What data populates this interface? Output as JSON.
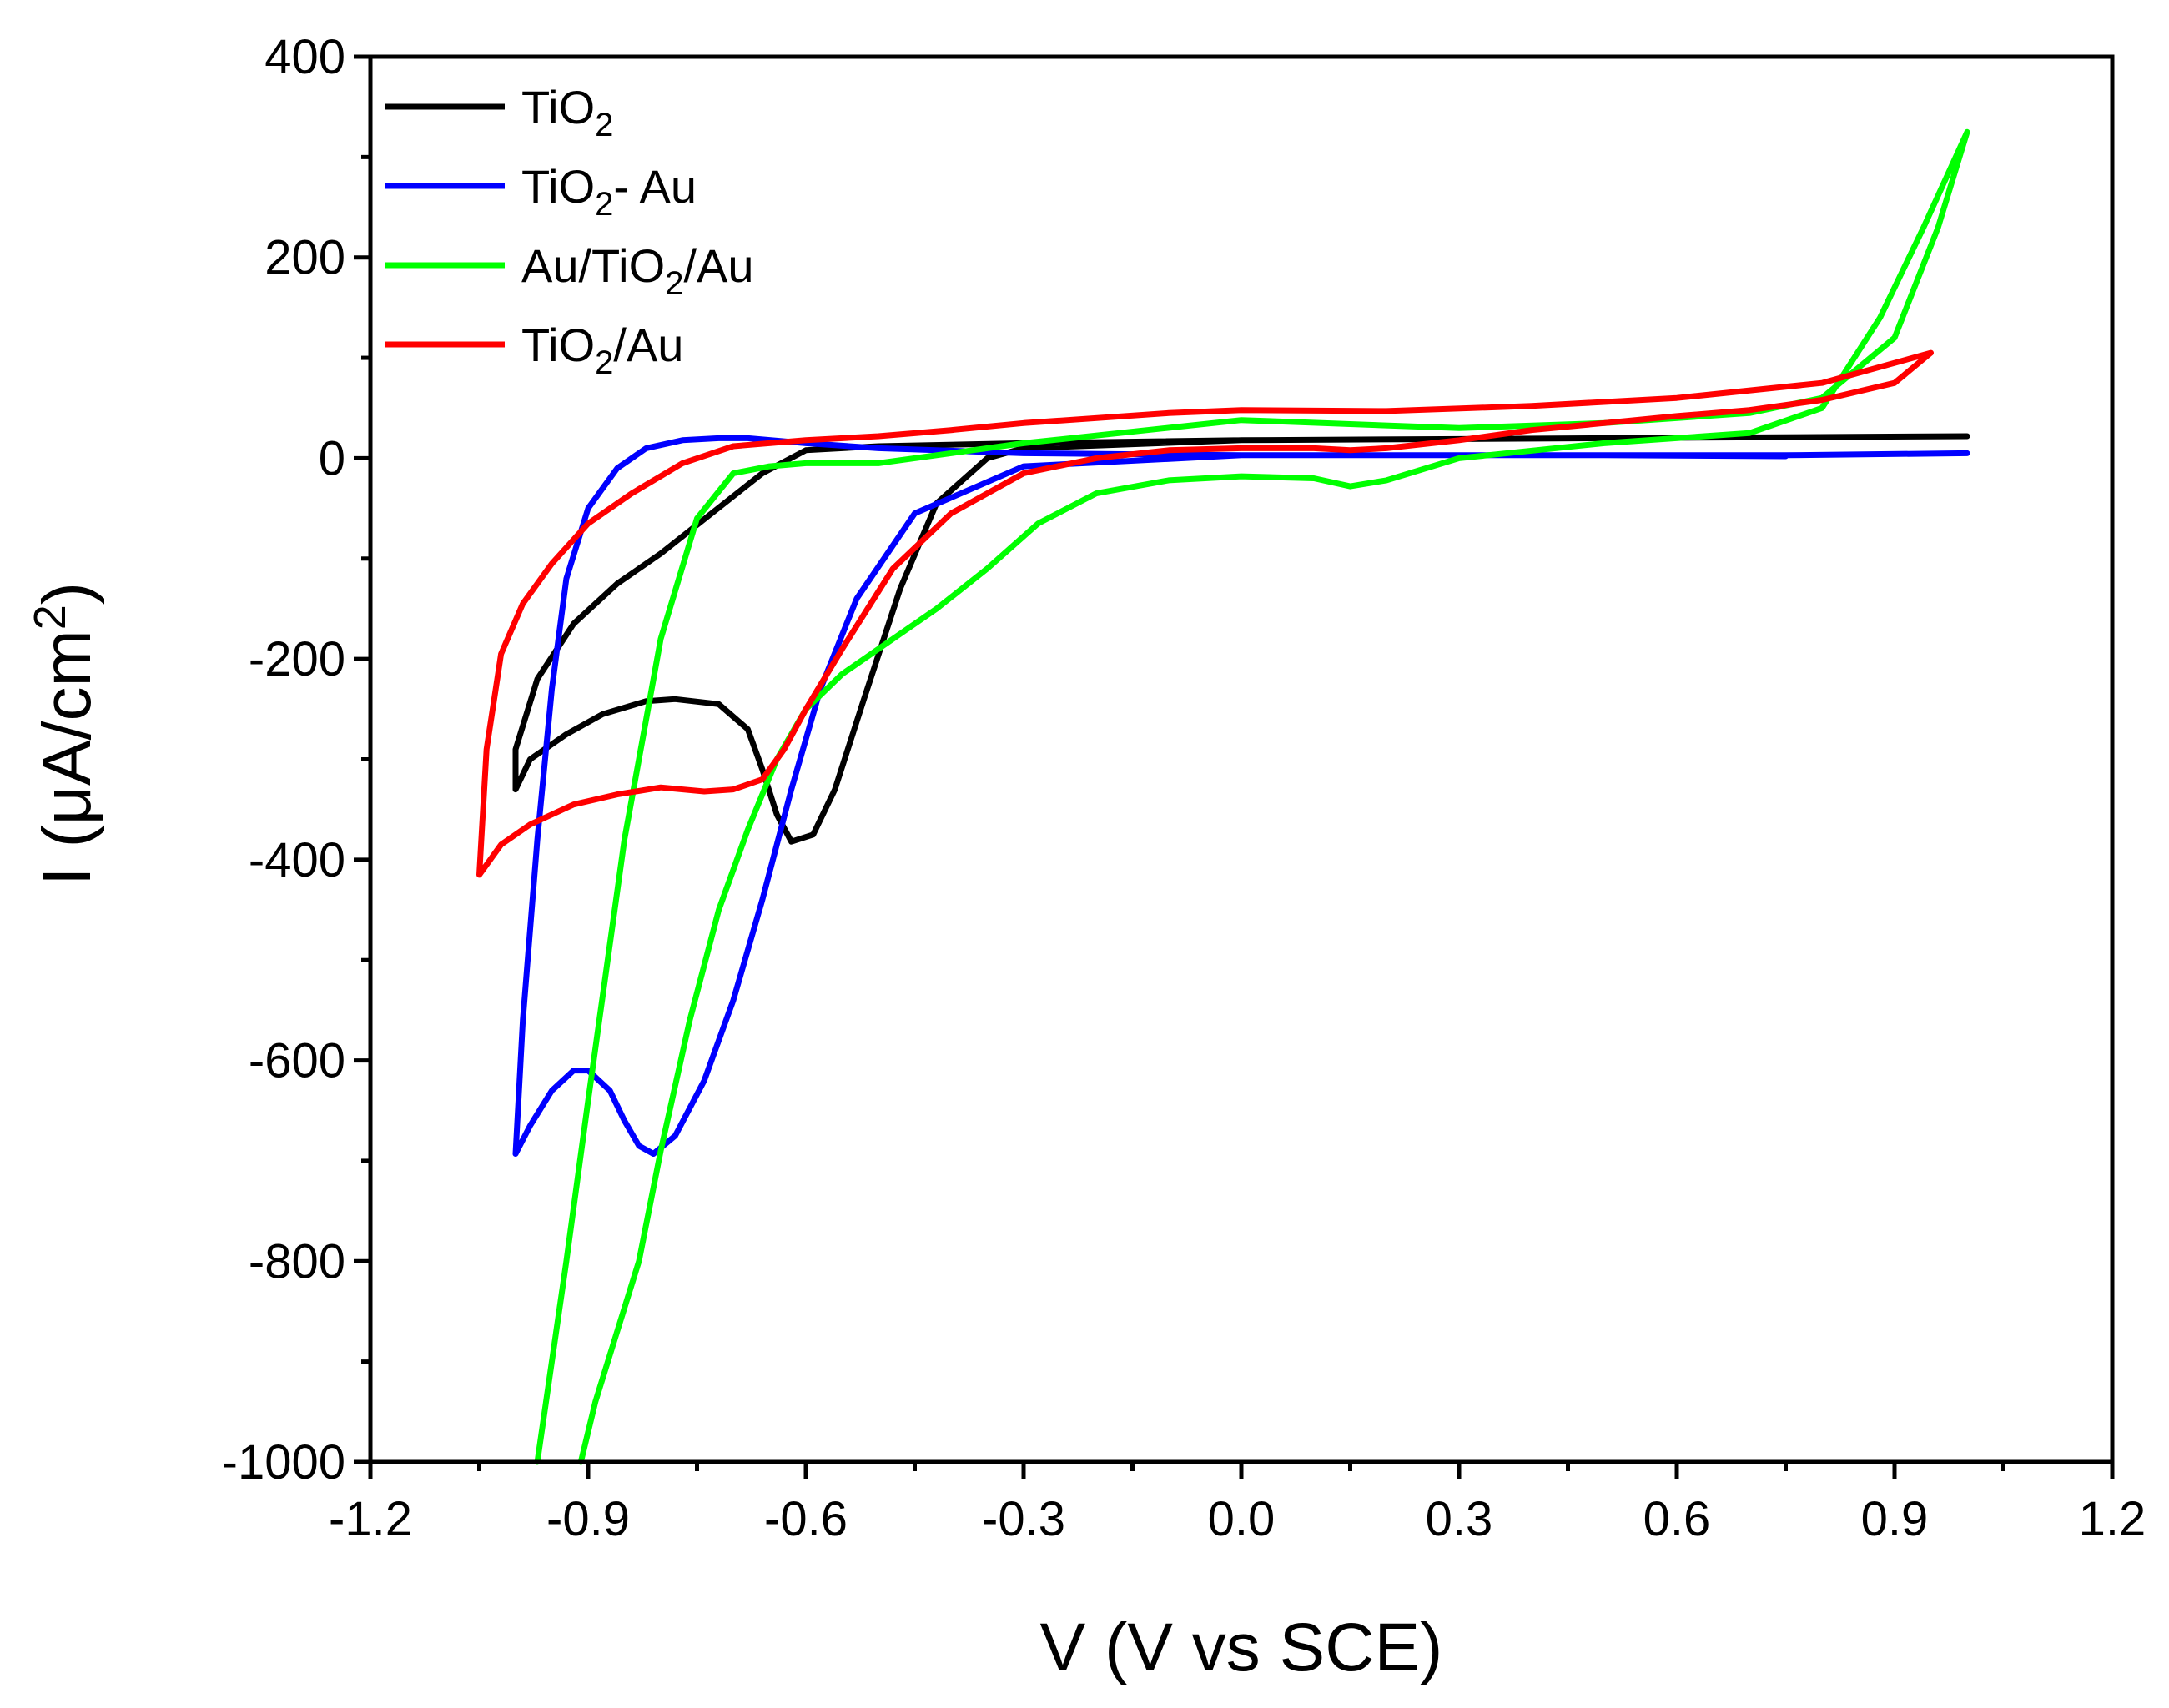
{
  "chart_data": {
    "type": "line",
    "title": "",
    "xlabel": "V (V vs SCE)",
    "ylabel": "I (μA/cm²)",
    "ylabel_parts": {
      "before": "I (μA/cm",
      "sup": "2",
      "after": ")"
    },
    "xlim": [
      -1.2,
      1.2
    ],
    "ylim": [
      -1000,
      400
    ],
    "x_ticks": [
      -1.2,
      -0.9,
      -0.6,
      -0.3,
      0.0,
      0.3,
      0.6,
      0.9,
      1.2
    ],
    "x_tick_labels": [
      "-1.2",
      "-0.9",
      "-0.6",
      "-0.3",
      "0.0",
      "0.3",
      "0.6",
      "0.9",
      "1.2"
    ],
    "y_ticks": [
      400,
      200,
      0,
      -200,
      -400,
      -600,
      -800,
      -1000
    ],
    "y_tick_labels": [
      "400",
      "200",
      "0",
      "-200",
      "-400",
      "-600",
      "-800",
      "-1000"
    ],
    "grid": false,
    "legend_position": "top-left",
    "series": [
      {
        "name": "TiO2",
        "label_parts": {
          "before": "TiO",
          "sub": "2",
          "after": ""
        },
        "color": "#000000",
        "x": [
          1.0,
          0.5,
          0.0,
          -0.3,
          -0.35,
          -0.42,
          -0.47,
          -0.52,
          -0.56,
          -0.59,
          -0.62,
          -0.64,
          -0.66,
          -0.68,
          -0.72,
          -0.78,
          -0.82,
          -0.88,
          -0.93,
          -0.98,
          -1.0,
          -1.0,
          -0.97,
          -0.92,
          -0.86,
          -0.8,
          -0.73,
          -0.66,
          -0.6,
          -0.5,
          -0.3,
          0.0,
          0.5,
          1.0
        ],
        "y": [
          22,
          20,
          18,
          10,
          0,
          -45,
          -130,
          -240,
          -330,
          -375,
          -382,
          -355,
          -310,
          -270,
          -245,
          -240,
          -242,
          -255,
          -275,
          -300,
          -330,
          -290,
          -220,
          -165,
          -125,
          -95,
          -55,
          -15,
          8,
          12,
          15,
          18,
          20,
          22
        ]
      },
      {
        "name": "TiO2- Au",
        "label_parts": {
          "before": "TiO",
          "sub": "2",
          "after": "- Au"
        },
        "color": "#0000ff",
        "x": [
          1.0,
          0.75,
          0.5,
          0.0,
          -0.3,
          -0.45,
          -0.53,
          -0.58,
          -0.62,
          -0.66,
          -0.7,
          -0.74,
          -0.78,
          -0.81,
          -0.83,
          -0.85,
          -0.87,
          -0.9,
          -0.92,
          -0.95,
          -0.98,
          -1.0,
          -0.99,
          -0.97,
          -0.95,
          -0.93,
          -0.9,
          -0.86,
          -0.82,
          -0.77,
          -0.72,
          -0.68,
          -0.6,
          -0.5,
          -0.3,
          0.0,
          0.5,
          0.75
        ],
        "y": [
          5,
          3,
          3,
          3,
          -8,
          -55,
          -140,
          -230,
          -330,
          -440,
          -540,
          -620,
          -675,
          -693,
          -685,
          -660,
          -630,
          -610,
          -610,
          -630,
          -665,
          -693,
          -560,
          -380,
          -230,
          -120,
          -50,
          -10,
          10,
          18,
          20,
          20,
          15,
          10,
          5,
          3,
          3,
          2
        ]
      },
      {
        "name": "Au/TiO2/Au",
        "label_parts": {
          "before": "Au/TiO",
          "sub": "2",
          "after": "/Au"
        },
        "color": "#00ff00",
        "x": [
          -0.91,
          -0.89,
          -0.86,
          -0.83,
          -0.8,
          -0.76,
          -0.72,
          -0.68,
          -0.64,
          -0.6,
          -0.55,
          -0.5,
          -0.42,
          -0.35,
          -0.28,
          -0.2,
          -0.1,
          0.0,
          0.1,
          0.15,
          0.2,
          0.3,
          0.5,
          0.7,
          0.8,
          0.88,
          0.94,
          1.0,
          0.96,
          0.9,
          0.8,
          0.7,
          0.5,
          0.3,
          0.0,
          -0.3,
          -0.5,
          -0.6,
          -0.65,
          -0.7,
          -0.75,
          -0.8,
          -0.85,
          -0.9,
          -0.93,
          -0.95,
          -0.97
        ],
        "y": [
          -1000,
          -940,
          -870,
          -800,
          -690,
          -560,
          -450,
          -370,
          -300,
          -250,
          -215,
          -190,
          -150,
          -110,
          -65,
          -35,
          -22,
          -18,
          -20,
          -28,
          -22,
          0,
          15,
          25,
          50,
          140,
          230,
          325,
          230,
          120,
          60,
          45,
          35,
          30,
          38,
          15,
          -5,
          -5,
          -8,
          -15,
          -60,
          -180,
          -380,
          -640,
          -800,
          -900,
          -1000
        ]
      },
      {
        "name": "TiO2/Au",
        "label_parts": {
          "before": "TiO",
          "sub": "2",
          "after": "/Au"
        },
        "color": "#ff0000",
        "x": [
          0.95,
          0.9,
          0.8,
          0.7,
          0.6,
          0.5,
          0.4,
          0.3,
          0.2,
          0.15,
          0.1,
          0.0,
          -0.1,
          -0.2,
          -0.3,
          -0.4,
          -0.48,
          -0.55,
          -0.6,
          -0.63,
          -0.66,
          -0.7,
          -0.74,
          -0.8,
          -0.86,
          -0.92,
          -0.98,
          -1.02,
          -1.05,
          -1.04,
          -1.02,
          -0.99,
          -0.95,
          -0.9,
          -0.84,
          -0.77,
          -0.7,
          -0.6,
          -0.5,
          -0.4,
          -0.3,
          -0.1,
          0.0,
          0.2,
          0.4,
          0.6,
          0.8,
          0.95
        ],
        "y": [
          105,
          75,
          58,
          48,
          42,
          35,
          28,
          18,
          10,
          8,
          10,
          10,
          8,
          0,
          -15,
          -55,
          -110,
          -190,
          -250,
          -290,
          -320,
          -330,
          -332,
          -328,
          -335,
          -345,
          -365,
          -385,
          -415,
          -290,
          -195,
          -145,
          -105,
          -65,
          -35,
          -5,
          12,
          18,
          22,
          28,
          35,
          45,
          48,
          47,
          52,
          60,
          75,
          105
        ]
      }
    ]
  }
}
